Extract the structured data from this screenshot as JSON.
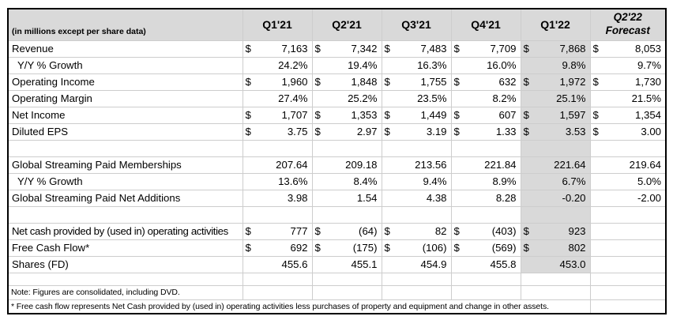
{
  "colors": {
    "header_fill": "#d9d9d9",
    "shade_fill": "#d9d9d9",
    "grid": "#cdcdcd",
    "border": "#000000",
    "text": "#000000"
  },
  "table": {
    "unit_label": "(in millions except per share data)",
    "currency_symbol": "$",
    "columns": [
      {
        "label": "Q1'21"
      },
      {
        "label": "Q2'21"
      },
      {
        "label": "Q3'21"
      },
      {
        "label": "Q4'21"
      },
      {
        "label": "Q1'22"
      },
      {
        "label": "Q2'22",
        "sublabel": "Forecast",
        "forecast": true
      }
    ],
    "shaded_column_index": 4,
    "rows": [
      {
        "kind": "data",
        "label": "Revenue",
        "currency": true,
        "shade": true,
        "values": [
          "7,163",
          "7,342",
          "7,483",
          "7,709",
          "7,868",
          "8,053"
        ]
      },
      {
        "kind": "data",
        "label": "Y/Y % Growth",
        "indent": true,
        "shade": true,
        "values": [
          "24.2%",
          "19.4%",
          "16.3%",
          "16.0%",
          "9.8%",
          "9.7%"
        ]
      },
      {
        "kind": "data",
        "label": "Operating Income",
        "currency": true,
        "shade": true,
        "values": [
          "1,960",
          "1,848",
          "1,755",
          "632",
          "1,972",
          "1,730"
        ]
      },
      {
        "kind": "data",
        "label": "Operating Margin",
        "shade": true,
        "values": [
          "27.4%",
          "25.2%",
          "23.5%",
          "8.2%",
          "25.1%",
          "21.5%"
        ]
      },
      {
        "kind": "data",
        "label": "Net Income",
        "currency": true,
        "shade": true,
        "values": [
          "1,707",
          "1,353",
          "1,449",
          "607",
          "1,597",
          "1,354"
        ]
      },
      {
        "kind": "data",
        "label": "Diluted EPS",
        "currency": true,
        "shade": true,
        "values": [
          "3.75",
          "2.97",
          "3.19",
          "1.33",
          "3.53",
          "3.00"
        ]
      },
      {
        "kind": "blank",
        "shade": true
      },
      {
        "kind": "data",
        "label": "Global Streaming Paid Memberships",
        "shade": true,
        "values": [
          "207.64",
          "209.18",
          "213.56",
          "221.84",
          "221.64",
          "219.64"
        ]
      },
      {
        "kind": "data",
        "label": "Y/Y % Growth",
        "indent": true,
        "shade": true,
        "values": [
          "13.6%",
          "8.4%",
          "9.4%",
          "8.9%",
          "6.7%",
          "5.0%"
        ]
      },
      {
        "kind": "data",
        "label": "Global Streaming Paid Net Additions",
        "shade": true,
        "values": [
          "3.98",
          "1.54",
          "4.38",
          "8.28",
          "-0.20",
          "-2.00"
        ]
      },
      {
        "kind": "blank",
        "shade": true
      },
      {
        "kind": "data",
        "label": "Net cash provided by (used in) operating activities",
        "currency": true,
        "shade": true,
        "values": [
          "777",
          "(64)",
          "82",
          "(403)",
          "923",
          ""
        ]
      },
      {
        "kind": "data",
        "label": "Free Cash Flow*",
        "currency": true,
        "shade": true,
        "values": [
          "692",
          "(175)",
          "(106)",
          "(569)",
          "802",
          ""
        ]
      },
      {
        "kind": "data",
        "label": "Shares (FD)",
        "shade": true,
        "values": [
          "455.6",
          "455.1",
          "454.9",
          "455.8",
          "453.0",
          ""
        ]
      },
      {
        "kind": "blank",
        "shade": false,
        "short": true
      },
      {
        "kind": "note",
        "label": "Note: Figures are consolidated, including DVD."
      },
      {
        "kind": "footnote",
        "label": "* Free cash flow represents Net Cash provided by (used in) operating activities less purchases of property and equipment and change in other assets."
      }
    ]
  }
}
